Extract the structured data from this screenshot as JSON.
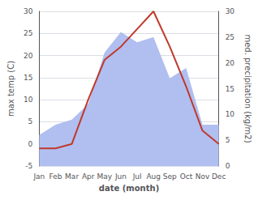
{
  "chart_data": {
    "type": "line",
    "xlabel": "date (month)",
    "ylabel": "max temp (C)",
    "y2label": "med. precipitation (kg/m2)",
    "categories": [
      "Jan",
      "Feb",
      "Mar",
      "Apr",
      "May",
      "Jun",
      "Jul",
      "Aug",
      "Sep",
      "Oct",
      "Nov",
      "Dec"
    ],
    "series": [
      {
        "type": "area",
        "color": "#b0bff0",
        "axis": "y2",
        "values": [
          6,
          8,
          9,
          12,
          22,
          26,
          24,
          25,
          17,
          19,
          8,
          8
        ]
      },
      {
        "type": "line",
        "color": "#c0392b",
        "values": [
          -1,
          -1,
          0,
          10,
          19,
          22,
          26,
          30,
          22,
          13,
          3,
          0
        ]
      }
    ],
    "ylim": [
      -5,
      30
    ],
    "yticks": [
      -5,
      0,
      5,
      10,
      15,
      20,
      25,
      30
    ],
    "y2lim": [
      0,
      30
    ],
    "y2ticks": [
      0,
      5,
      10,
      15,
      20,
      25,
      30
    ],
    "grid": true
  }
}
